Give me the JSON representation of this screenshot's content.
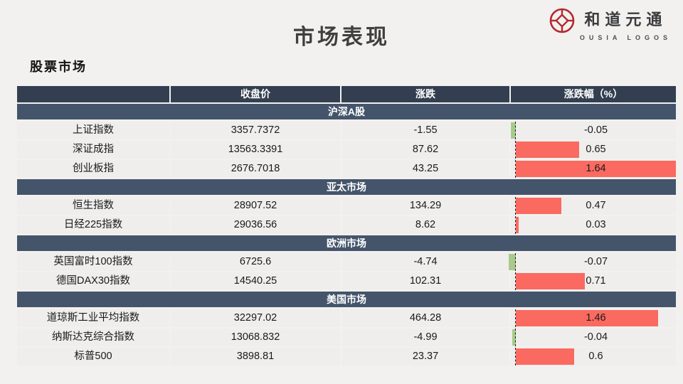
{
  "page": {
    "title": "市场表现",
    "subtitle": "股票市场"
  },
  "logo": {
    "name_cn": "和道元通",
    "name_en": "OUSIA LOGOS",
    "icon": "coin-emblem-icon",
    "accent_color": "#B5282E"
  },
  "colors": {
    "header_bg": "#333F50",
    "section_bg": "#44546A",
    "row_bg": "#efeeed",
    "page_bg": "#f2f1ef",
    "positive_bar": "#FA6A60",
    "negative_bar": "#A8CB8B"
  },
  "table": {
    "columns": [
      "",
      "收盘价",
      "涨跌",
      "涨跌幅（%）"
    ],
    "sections": [
      {
        "label": "沪深A股",
        "rows": [
          {
            "name": "上证指数",
            "close": "3357.7372",
            "change": "-1.55",
            "pct": -0.05,
            "pct_label": "-0.05"
          },
          {
            "name": "深证成指",
            "close": "13563.3391",
            "change": "87.62",
            "pct": 0.65,
            "pct_label": "0.65"
          },
          {
            "name": "创业板指",
            "close": "2676.7018",
            "change": "43.25",
            "pct": 1.64,
            "pct_label": "1.64"
          }
        ]
      },
      {
        "label": "亚太市场",
        "rows": [
          {
            "name": "恒生指数",
            "close": "28907.52",
            "change": "134.29",
            "pct": 0.47,
            "pct_label": "0.47"
          },
          {
            "name": "日经225指数",
            "close": "29036.56",
            "change": "8.62",
            "pct": 0.03,
            "pct_label": "0.03"
          }
        ]
      },
      {
        "label": "欧洲市场",
        "rows": [
          {
            "name": "英国富时100指数",
            "close": "6725.6",
            "change": "-4.74",
            "pct": -0.07,
            "pct_label": "-0.07"
          },
          {
            "name": "德国DAX30指数",
            "close": "14540.25",
            "change": "102.31",
            "pct": 0.71,
            "pct_label": "0.71"
          }
        ]
      },
      {
        "label": "美国市场",
        "rows": [
          {
            "name": "道琼斯工业平均指数",
            "close": "32297.02",
            "change": "464.28",
            "pct": 1.46,
            "pct_label": "1.46"
          },
          {
            "name": "纳斯达克综合指数",
            "close": "13068.832",
            "change": "-4.99",
            "pct": -0.04,
            "pct_label": "-0.04"
          },
          {
            "name": "标普500",
            "close": "3898.81",
            "change": "23.37",
            "pct": 0.6,
            "pct_label": "0.6"
          }
        ]
      }
    ]
  },
  "chart_data": {
    "type": "bar",
    "title": "涨跌幅（%）数据条",
    "orientation": "horizontal",
    "categories": [
      "上证指数",
      "深证成指",
      "创业板指",
      "恒生指数",
      "日经225指数",
      "英国富时100指数",
      "德国DAX30指数",
      "道琼斯工业平均指数",
      "纳斯达克综合指数",
      "标普500"
    ],
    "values": [
      -0.05,
      0.65,
      1.64,
      0.47,
      0.03,
      -0.07,
      0.71,
      1.46,
      -0.04,
      0.6
    ],
    "series": [
      {
        "name": "收盘价",
        "values": [
          3357.7372,
          13563.3391,
          2676.7018,
          28907.52,
          29036.56,
          6725.6,
          14540.25,
          32297.02,
          13068.832,
          3898.81
        ]
      },
      {
        "name": "涨跌",
        "values": [
          -1.55,
          87.62,
          43.25,
          134.29,
          8.62,
          -4.74,
          102.31,
          464.28,
          -4.99,
          23.37
        ]
      },
      {
        "name": "涨跌幅（%）",
        "values": [
          -0.05,
          0.65,
          1.64,
          0.47,
          0.03,
          -0.07,
          0.71,
          1.46,
          -0.04,
          0.6
        ]
      }
    ],
    "xlabel": "",
    "ylabel": "",
    "xlim": [
      -0.07,
      1.64
    ],
    "baseline": 0,
    "bar_full_scale_value": 1.64,
    "positive_color": "#FA6A60",
    "negative_color": "#A8CB8B",
    "grid": false,
    "legend_position": "none"
  }
}
